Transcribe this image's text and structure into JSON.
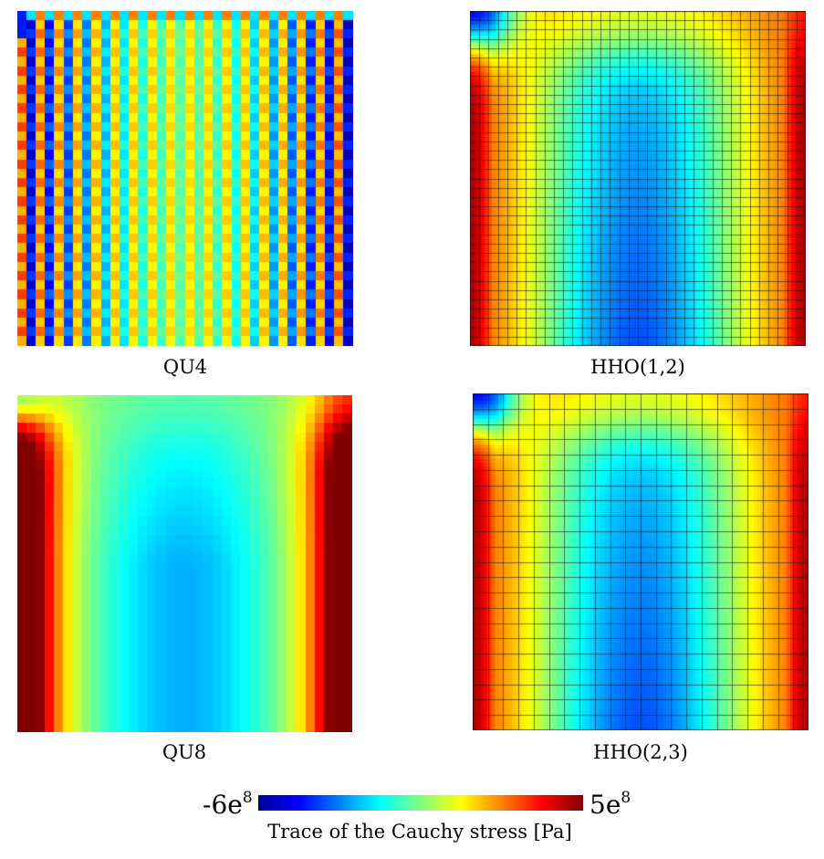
{
  "panels": [
    {
      "id": "qu4",
      "caption": "QU4",
      "pattern": "checkerboard",
      "mesh_lines": false
    },
    {
      "id": "hho12",
      "caption": "HHO(1,2)",
      "pattern": "smooth",
      "mesh_lines": true
    },
    {
      "id": "qu8",
      "caption": "QU8",
      "pattern": "blocky",
      "mesh_lines": false
    },
    {
      "id": "hho23",
      "caption": "HHO(2,3)",
      "pattern": "smooth",
      "mesh_lines": true
    }
  ],
  "colorbar": {
    "min_label": "-6e",
    "min_exp": "8",
    "max_label": "5e",
    "max_exp": "8",
    "title": "Trace of the Cauchy stress [Pa]",
    "colormap": "jet",
    "colors": [
      "#00008f",
      "#0000ff",
      "#0080ff",
      "#00ffff",
      "#80ff80",
      "#ffff00",
      "#ff8000",
      "#ff0000",
      "#800000"
    ]
  }
}
